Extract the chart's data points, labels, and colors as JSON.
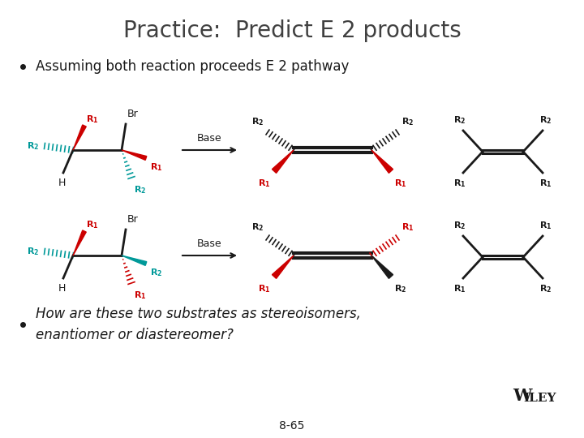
{
  "title": "Practice:  Predict E 2 products",
  "bullet1": "Assuming both reaction proceeds E 2 pathway",
  "bullet2_italic": "How are these two substrates as stereoisomers,\nenantiomer or diastereomer?",
  "page_num": "8-65",
  "background_color": "#ffffff",
  "red": "#cc0000",
  "teal": "#009999",
  "black": "#1a1a1a",
  "title_fontsize": 20,
  "bullet_fontsize": 12,
  "mol_fontsize": 8,
  "arrow_fontsize": 9
}
